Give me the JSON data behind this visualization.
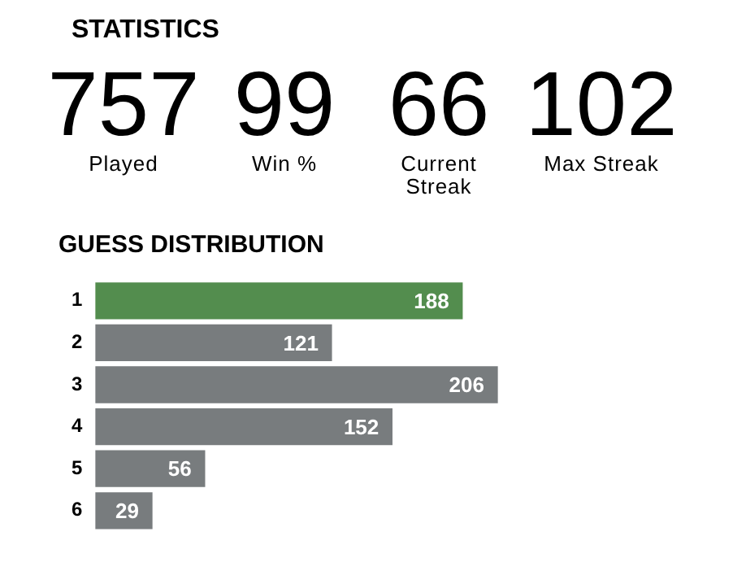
{
  "chart_data": [
    {
      "type": "other",
      "title": "STATISTICS",
      "annotations": [
        "757",
        "Played",
        "99",
        "Win %",
        "66",
        "Current Streak",
        "102",
        "Max Streak"
      ]
    },
    {
      "type": "bar",
      "orientation": "horizontal",
      "title": "GUESS DISTRIBUTION",
      "categories": [
        "1",
        "2",
        "3",
        "4",
        "5",
        "6"
      ],
      "values": [
        188,
        121,
        206,
        152,
        56,
        29
      ],
      "colors": [
        "#538d4e",
        "#787c7e",
        "#787c7e",
        "#787c7e",
        "#787c7e",
        "#787c7e"
      ],
      "data_labels": true,
      "grid": false,
      "legend": false
    }
  ]
}
